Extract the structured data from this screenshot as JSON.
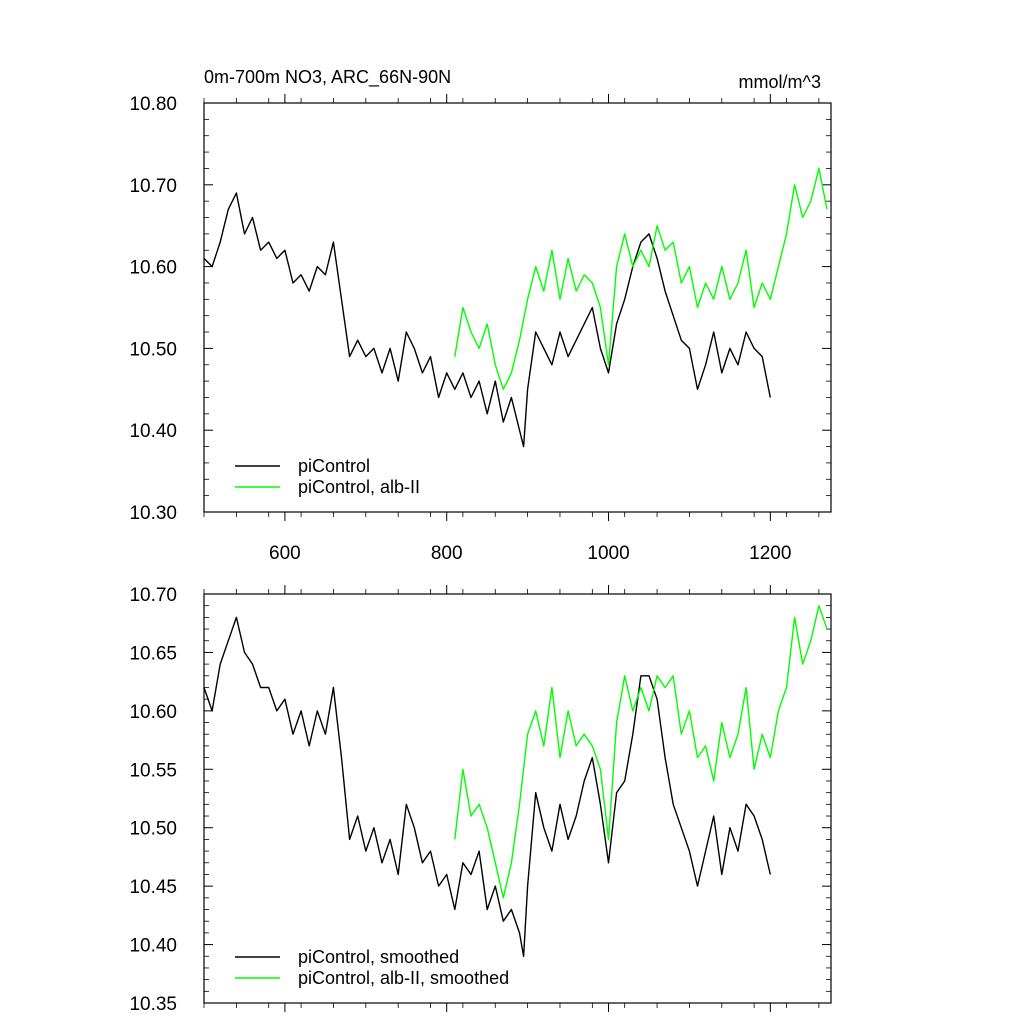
{
  "chart_data": [
    {
      "type": "line",
      "title_left": "0m-700m NO3, ARC_66N-90N",
      "title_right": "mmol/m^3",
      "xlabel": "",
      "ylabel": "",
      "xlim": [
        500,
        1275
      ],
      "ylim": [
        10.3,
        10.8
      ],
      "xticks": [
        600,
        800,
        1000,
        1200
      ],
      "xtick_labels": [
        "600",
        "800",
        "1000",
        "1200"
      ],
      "yticks": [
        10.3,
        10.4,
        10.5,
        10.6,
        10.7,
        10.8
      ],
      "ytick_labels": [
        "10.30",
        "10.40",
        "10.50",
        "10.60",
        "10.70",
        "10.80"
      ],
      "grid": false,
      "legend_position": "bottom-left",
      "series": [
        {
          "name": "piControl",
          "color": "#000000",
          "x": [
            500,
            510,
            520,
            530,
            540,
            550,
            560,
            570,
            580,
            590,
            600,
            610,
            620,
            630,
            640,
            650,
            660,
            670,
            680,
            690,
            700,
            710,
            720,
            730,
            740,
            750,
            760,
            770,
            780,
            790,
            800,
            810,
            820,
            830,
            840,
            850,
            860,
            870,
            880,
            890,
            895,
            900,
            910,
            920,
            930,
            940,
            950,
            960,
            970,
            980,
            990,
            1000,
            1010,
            1020,
            1030,
            1040,
            1050,
            1060,
            1070,
            1080,
            1090,
            1100,
            1110,
            1120,
            1130,
            1140,
            1150,
            1160,
            1170,
            1180,
            1190,
            1200
          ],
          "y": [
            10.61,
            10.6,
            10.63,
            10.67,
            10.69,
            10.64,
            10.66,
            10.62,
            10.63,
            10.61,
            10.62,
            10.58,
            10.59,
            10.57,
            10.6,
            10.59,
            10.63,
            10.56,
            10.49,
            10.51,
            10.49,
            10.5,
            10.47,
            10.5,
            10.46,
            10.52,
            10.5,
            10.47,
            10.49,
            10.44,
            10.47,
            10.45,
            10.47,
            10.44,
            10.46,
            10.42,
            10.46,
            10.41,
            10.44,
            10.4,
            10.38,
            10.45,
            10.52,
            10.5,
            10.48,
            10.52,
            10.49,
            10.51,
            10.53,
            10.55,
            10.5,
            10.47,
            10.53,
            10.56,
            10.6,
            10.63,
            10.64,
            10.61,
            10.57,
            10.54,
            10.51,
            10.5,
            10.45,
            10.48,
            10.52,
            10.47,
            10.5,
            10.48,
            10.52,
            10.5,
            10.49,
            10.44
          ]
        },
        {
          "name": "piControl, alb-II",
          "color": "#00ff00",
          "x": [
            810,
            820,
            830,
            840,
            850,
            860,
            870,
            880,
            890,
            900,
            910,
            920,
            930,
            940,
            950,
            960,
            970,
            980,
            990,
            1000,
            1010,
            1020,
            1030,
            1040,
            1050,
            1060,
            1070,
            1080,
            1090,
            1100,
            1110,
            1120,
            1130,
            1140,
            1150,
            1160,
            1170,
            1180,
            1190,
            1200,
            1210,
            1220,
            1230,
            1240,
            1250,
            1260,
            1270
          ],
          "y": [
            10.49,
            10.55,
            10.52,
            10.5,
            10.53,
            10.48,
            10.45,
            10.47,
            10.51,
            10.56,
            10.6,
            10.57,
            10.62,
            10.56,
            10.61,
            10.57,
            10.59,
            10.58,
            10.55,
            10.48,
            10.6,
            10.64,
            10.6,
            10.62,
            10.6,
            10.65,
            10.62,
            10.63,
            10.58,
            10.6,
            10.55,
            10.58,
            10.56,
            10.6,
            10.56,
            10.58,
            10.62,
            10.55,
            10.58,
            10.56,
            10.6,
            10.64,
            10.7,
            10.66,
            10.68,
            10.72,
            10.67
          ]
        }
      ]
    },
    {
      "type": "line",
      "xlabel": "",
      "ylabel": "",
      "xlim": [
        500,
        1275
      ],
      "ylim": [
        10.35,
        10.7
      ],
      "xticks": [
        600,
        800,
        1000,
        1200
      ],
      "yticks": [
        10.35,
        10.4,
        10.45,
        10.5,
        10.55,
        10.6,
        10.65,
        10.7
      ],
      "ytick_labels": [
        "10.35",
        "10.40",
        "10.45",
        "10.50",
        "10.55",
        "10.60",
        "10.65",
        "10.70"
      ],
      "grid": false,
      "legend_position": "bottom-left",
      "series": [
        {
          "name": "piControl, smoothed",
          "color": "#000000",
          "x": [
            500,
            510,
            520,
            530,
            540,
            550,
            560,
            570,
            580,
            590,
            600,
            610,
            620,
            630,
            640,
            650,
            660,
            670,
            680,
            690,
            700,
            710,
            720,
            730,
            740,
            750,
            760,
            770,
            780,
            790,
            800,
            810,
            820,
            830,
            840,
            850,
            860,
            870,
            880,
            890,
            895,
            900,
            910,
            920,
            930,
            940,
            950,
            960,
            970,
            980,
            990,
            1000,
            1010,
            1020,
            1030,
            1040,
            1050,
            1060,
            1070,
            1080,
            1090,
            1100,
            1110,
            1120,
            1130,
            1140,
            1150,
            1160,
            1170,
            1180,
            1190,
            1200
          ],
          "y": [
            10.62,
            10.6,
            10.64,
            10.66,
            10.68,
            10.65,
            10.64,
            10.62,
            10.62,
            10.6,
            10.61,
            10.58,
            10.6,
            10.57,
            10.6,
            10.58,
            10.62,
            10.56,
            10.49,
            10.51,
            10.48,
            10.5,
            10.47,
            10.49,
            10.46,
            10.52,
            10.5,
            10.47,
            10.48,
            10.45,
            10.46,
            10.43,
            10.47,
            10.46,
            10.48,
            10.43,
            10.45,
            10.42,
            10.43,
            10.41,
            10.39,
            10.45,
            10.53,
            10.5,
            10.48,
            10.52,
            10.49,
            10.51,
            10.54,
            10.56,
            10.52,
            10.47,
            10.53,
            10.54,
            10.58,
            10.63,
            10.63,
            10.61,
            10.56,
            10.52,
            10.5,
            10.48,
            10.45,
            10.48,
            10.51,
            10.46,
            10.5,
            10.48,
            10.52,
            10.51,
            10.49,
            10.46
          ]
        },
        {
          "name": "piControl, alb-II, smoothed",
          "color": "#00ff00",
          "x": [
            810,
            820,
            830,
            840,
            850,
            860,
            870,
            880,
            890,
            900,
            910,
            920,
            930,
            940,
            950,
            960,
            970,
            980,
            990,
            1000,
            1010,
            1020,
            1030,
            1040,
            1050,
            1060,
            1070,
            1080,
            1090,
            1100,
            1110,
            1120,
            1130,
            1140,
            1150,
            1160,
            1170,
            1180,
            1190,
            1200,
            1210,
            1220,
            1230,
            1240,
            1250,
            1260,
            1270
          ],
          "y": [
            10.49,
            10.55,
            10.51,
            10.52,
            10.5,
            10.47,
            10.44,
            10.47,
            10.52,
            10.58,
            10.6,
            10.57,
            10.62,
            10.56,
            10.6,
            10.57,
            10.58,
            10.57,
            10.55,
            10.49,
            10.59,
            10.63,
            10.6,
            10.62,
            10.6,
            10.63,
            10.62,
            10.63,
            10.58,
            10.6,
            10.56,
            10.57,
            10.54,
            10.59,
            10.56,
            10.58,
            10.62,
            10.55,
            10.58,
            10.56,
            10.6,
            10.62,
            10.68,
            10.64,
            10.66,
            10.69,
            10.67
          ]
        }
      ]
    }
  ]
}
